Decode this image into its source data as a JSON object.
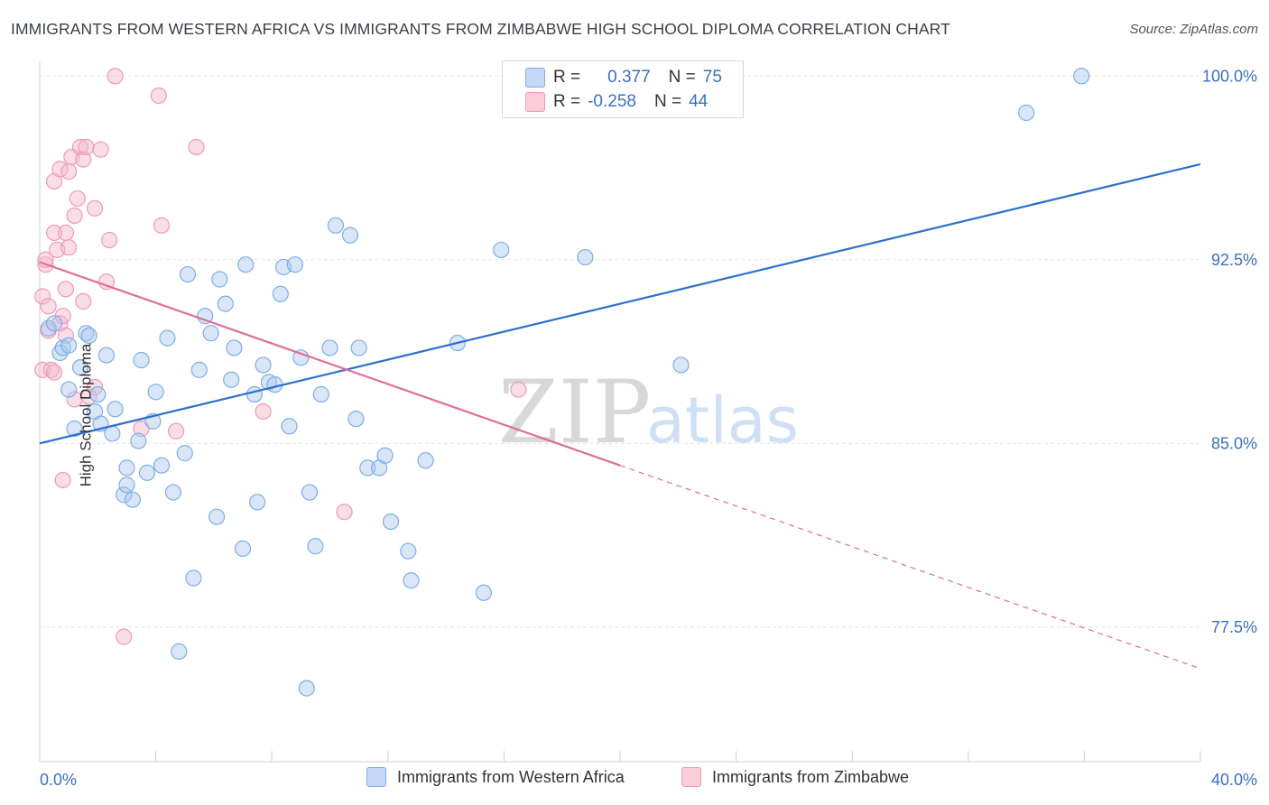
{
  "header": {
    "title": "IMMIGRANTS FROM WESTERN AFRICA VS IMMIGRANTS FROM ZIMBABWE HIGH SCHOOL DIPLOMA CORRELATION CHART",
    "source": "Source: ZipAtlas.com"
  },
  "legend_top": {
    "rows": [
      {
        "r_label": "R =",
        "r_value": "0.377",
        "n_label": "N =",
        "n_value": "75"
      },
      {
        "r_label": "R =",
        "r_value": "-0.258",
        "n_label": "N =",
        "n_value": "44"
      }
    ]
  },
  "colors": {
    "blue": "#a8c8f0",
    "blue_line": "#2e6fcb",
    "pink": "#f4b5c9",
    "pink_line": "#df6d96",
    "axis_text": "#3a6fc4",
    "grid": "#e3e3e3"
  },
  "watermark": {
    "zip": "ZIP",
    "atlas": "atlas"
  },
  "chart_data": {
    "type": "scatter",
    "title": "IMMIGRANTS FROM WESTERN AFRICA VS IMMIGRANTS FROM ZIMBABWE HIGH SCHOOL DIPLOMA CORRELATION CHART",
    "xlabel": "",
    "ylabel": "High School Diploma",
    "xlim": [
      0,
      40
    ],
    "ylim": [
      72,
      100.6
    ],
    "x_tick_labels": [
      "0.0%",
      "40.0%"
    ],
    "y_ticks": [
      77.5,
      85.0,
      92.5,
      100.0
    ],
    "y_tick_labels": [
      "77.5%",
      "85.0%",
      "92.5%",
      "100.0%"
    ],
    "grid": true,
    "legend_placement": "bottom",
    "series": [
      {
        "name": "Immigrants from Western Africa",
        "color": "#a8c8f0",
        "trend": {
          "x": [
            0,
            40
          ],
          "y": [
            85.0,
            96.4
          ]
        },
        "points": [
          [
            0.3,
            89.7
          ],
          [
            0.5,
            89.9
          ],
          [
            0.7,
            88.7
          ],
          [
            0.8,
            88.9
          ],
          [
            1.0,
            87.2
          ],
          [
            1.2,
            85.6
          ],
          [
            1.4,
            88.1
          ],
          [
            1.6,
            89.5
          ],
          [
            1.7,
            89.4
          ],
          [
            1.9,
            86.3
          ],
          [
            2.1,
            85.8
          ],
          [
            2.3,
            88.6
          ],
          [
            2.5,
            85.4
          ],
          [
            2.6,
            86.4
          ],
          [
            2.9,
            82.9
          ],
          [
            3.0,
            83.3
          ],
          [
            3.2,
            82.7
          ],
          [
            3.4,
            85.1
          ],
          [
            3.5,
            88.4
          ],
          [
            3.7,
            83.8
          ],
          [
            3.9,
            85.9
          ],
          [
            4.0,
            87.1
          ],
          [
            4.2,
            84.1
          ],
          [
            4.4,
            89.3
          ],
          [
            4.6,
            83.0
          ],
          [
            5.0,
            84.6
          ],
          [
            5.1,
            91.9
          ],
          [
            5.3,
            79.5
          ],
          [
            5.5,
            88.0
          ],
          [
            5.7,
            90.2
          ],
          [
            5.9,
            89.5
          ],
          [
            6.1,
            82.0
          ],
          [
            6.2,
            91.7
          ],
          [
            6.4,
            90.7
          ],
          [
            6.6,
            87.6
          ],
          [
            6.7,
            88.9
          ],
          [
            7.0,
            80.7
          ],
          [
            7.1,
            92.3
          ],
          [
            7.4,
            87.0
          ],
          [
            7.5,
            82.6
          ],
          [
            7.7,
            88.2
          ],
          [
            7.9,
            87.5
          ],
          [
            8.1,
            87.4
          ],
          [
            8.3,
            91.1
          ],
          [
            8.4,
            92.2
          ],
          [
            8.6,
            85.7
          ],
          [
            8.8,
            92.3
          ],
          [
            9.0,
            88.5
          ],
          [
            9.2,
            75.0
          ],
          [
            9.3,
            83.0
          ],
          [
            9.5,
            80.8
          ],
          [
            9.7,
            87.0
          ],
          [
            10.0,
            88.9
          ],
          [
            10.2,
            93.9
          ],
          [
            10.7,
            93.5
          ],
          [
            10.9,
            86.0
          ],
          [
            11.0,
            88.9
          ],
          [
            11.3,
            84.0
          ],
          [
            11.7,
            84.0
          ],
          [
            11.9,
            84.5
          ],
          [
            12.1,
            81.8
          ],
          [
            12.7,
            80.6
          ],
          [
            12.8,
            79.4
          ],
          [
            13.3,
            84.3
          ],
          [
            14.4,
            89.1
          ],
          [
            15.3,
            78.9
          ],
          [
            15.9,
            92.9
          ],
          [
            18.8,
            92.6
          ],
          [
            22.1,
            88.2
          ],
          [
            34.0,
            98.5
          ],
          [
            35.9,
            100.0
          ],
          [
            1.0,
            89.0
          ],
          [
            2.0,
            87.0
          ],
          [
            3.0,
            84.0
          ],
          [
            4.8,
            76.5
          ]
        ]
      },
      {
        "name": "Immigrants from Zimbabwe",
        "color": "#f4b5c9",
        "trend": {
          "x": [
            0,
            20
          ],
          "y": [
            92.4,
            84.1
          ]
        },
        "trend_dashed": {
          "x": [
            20,
            40
          ],
          "y": [
            84.1,
            75.8
          ]
        },
        "points": [
          [
            0.1,
            88.0
          ],
          [
            0.1,
            91.0
          ],
          [
            0.2,
            92.3
          ],
          [
            0.2,
            92.5
          ],
          [
            0.3,
            90.6
          ],
          [
            0.3,
            89.6
          ],
          [
            0.4,
            88.0
          ],
          [
            0.5,
            87.9
          ],
          [
            0.5,
            93.6
          ],
          [
            0.5,
            95.7
          ],
          [
            0.6,
            92.9
          ],
          [
            0.7,
            96.2
          ],
          [
            0.7,
            89.9
          ],
          [
            0.8,
            90.2
          ],
          [
            0.8,
            83.5
          ],
          [
            0.9,
            89.4
          ],
          [
            0.9,
            91.3
          ],
          [
            0.9,
            93.6
          ],
          [
            1.0,
            96.1
          ],
          [
            1.0,
            93.0
          ],
          [
            1.1,
            96.7
          ],
          [
            1.2,
            94.3
          ],
          [
            1.2,
            86.8
          ],
          [
            1.3,
            95.0
          ],
          [
            1.4,
            97.1
          ],
          [
            1.5,
            96.6
          ],
          [
            1.5,
            90.8
          ],
          [
            1.6,
            97.1
          ],
          [
            1.7,
            86.9
          ],
          [
            1.9,
            94.6
          ],
          [
            1.9,
            87.3
          ],
          [
            2.1,
            97.0
          ],
          [
            2.3,
            91.6
          ],
          [
            2.4,
            93.3
          ],
          [
            2.6,
            100.0
          ],
          [
            2.9,
            77.1
          ],
          [
            3.5,
            85.6
          ],
          [
            4.1,
            99.2
          ],
          [
            4.2,
            93.9
          ],
          [
            4.7,
            85.5
          ],
          [
            5.4,
            97.1
          ],
          [
            7.7,
            86.3
          ],
          [
            10.5,
            82.2
          ],
          [
            16.5,
            87.2
          ]
        ]
      }
    ]
  },
  "legend_bottom": {
    "items": [
      "Immigrants from Western Africa",
      "Immigrants from Zimbabwe"
    ]
  }
}
